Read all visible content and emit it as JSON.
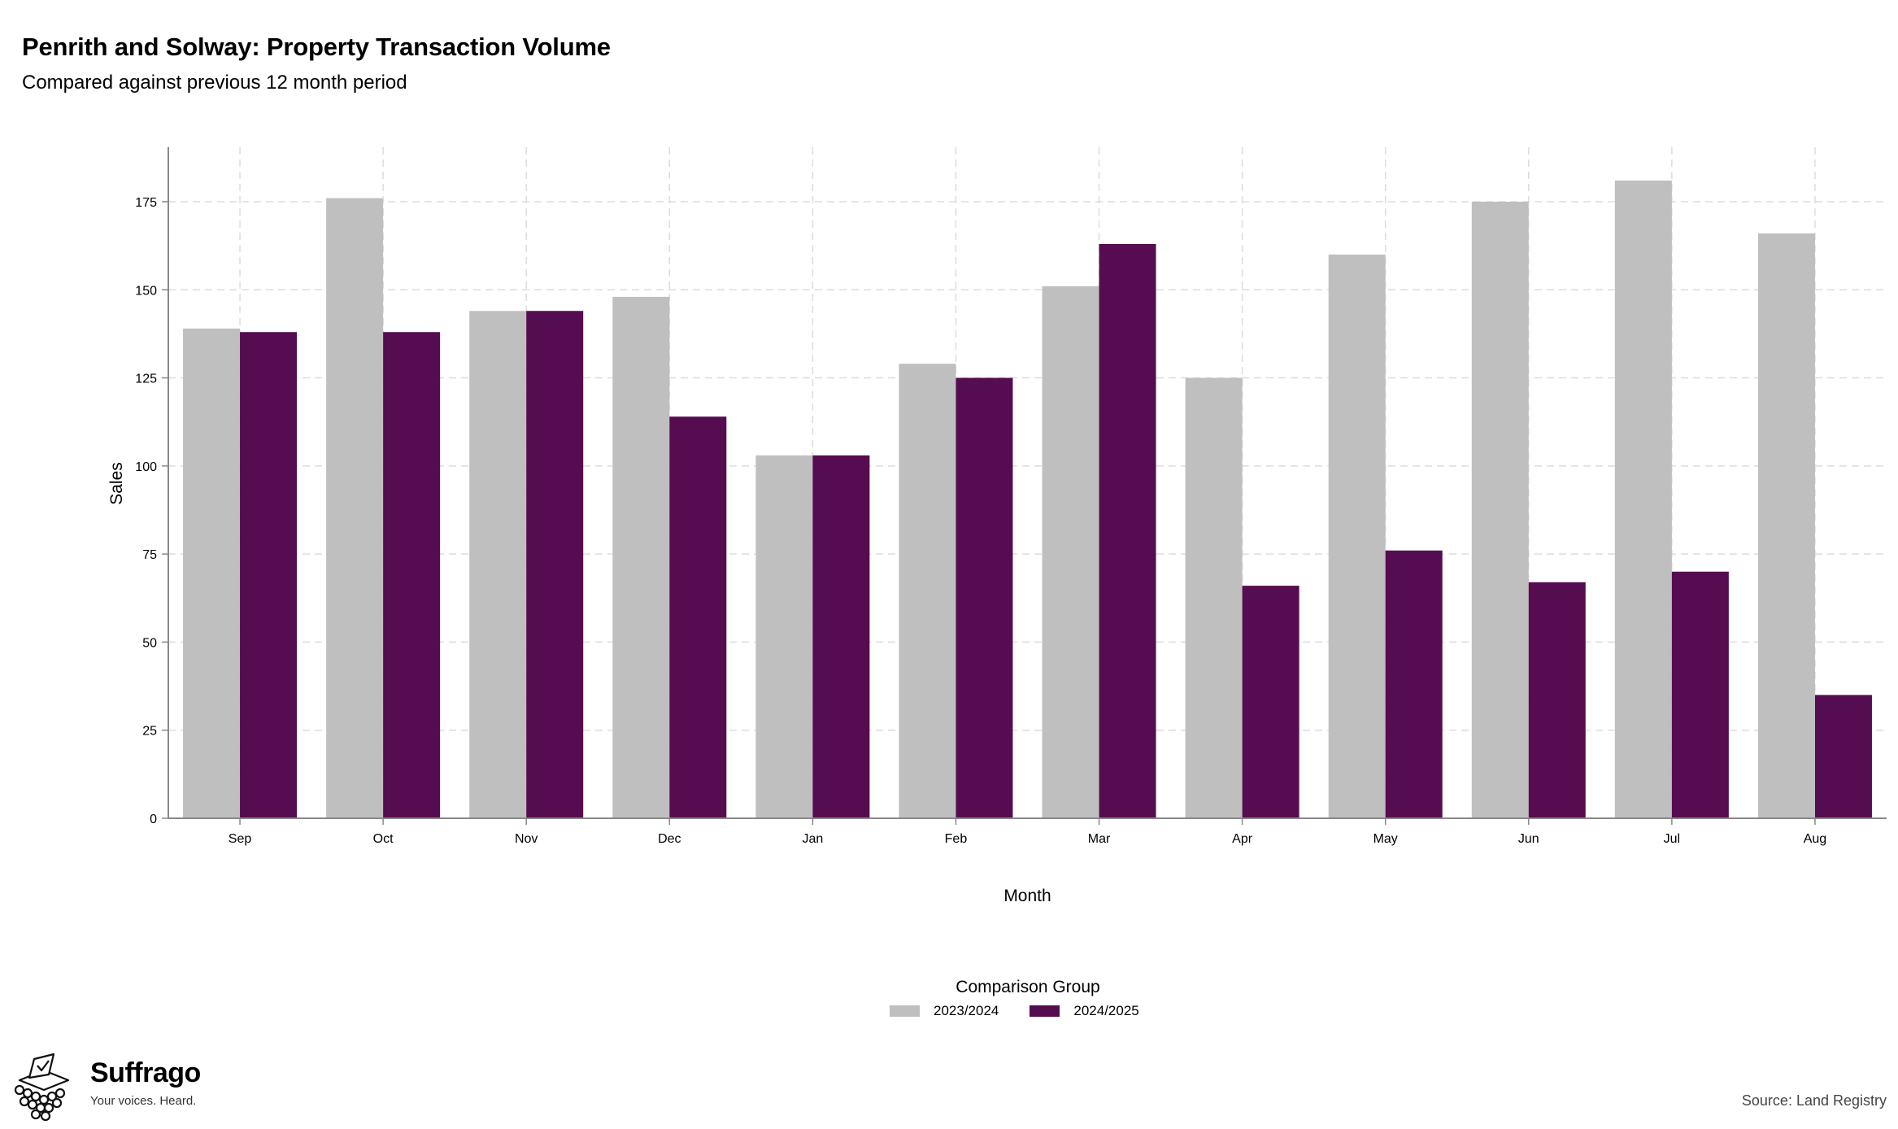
{
  "header": {
    "title": "Penrith and Solway: Property Transaction Volume",
    "subtitle": "Compared against previous 12 month period"
  },
  "footer": {
    "brand": "Suffrago",
    "tagline": "Your voices. Heard.",
    "source": "Source: Land Registry",
    "logo_icon": "ballot-box-icon"
  },
  "colors": {
    "series_2023": "#bfbfbf",
    "series_2024": "#560c50",
    "grid": "#dddddd",
    "axis": "#888888"
  },
  "chart_data": {
    "type": "bar",
    "xlabel": "Month",
    "ylabel": "Sales",
    "ylim": [
      0,
      190
    ],
    "yticks": [
      0,
      25,
      50,
      75,
      100,
      125,
      150,
      175
    ],
    "grid": true,
    "legend_title": "Comparison Group",
    "legend_position": "bottom",
    "categories": [
      "Sep",
      "Oct",
      "Nov",
      "Dec",
      "Jan",
      "Feb",
      "Mar",
      "Apr",
      "May",
      "Jun",
      "Jul",
      "Aug"
    ],
    "series": [
      {
        "name": "2023/2024",
        "color": "#bfbfbf",
        "values": [
          139,
          176,
          144,
          148,
          103,
          129,
          151,
          125,
          160,
          175,
          181,
          166
        ]
      },
      {
        "name": "2024/2025",
        "color": "#560c50",
        "values": [
          138,
          138,
          144,
          114,
          103,
          125,
          163,
          66,
          76,
          67,
          70,
          35
        ]
      }
    ]
  }
}
